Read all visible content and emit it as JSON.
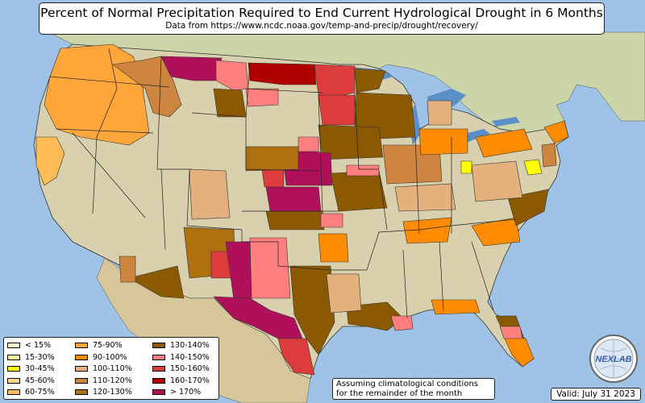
{
  "title": "Percent of Normal Precipitation Required to End Current Hydrological Drought in 6 Months",
  "subtitle": "Data from https://www.ncdc.noaa.gov/temp-and-precip/drought/recovery/",
  "legend": [
    {
      "label": "< 15%",
      "color": "#ffffcc"
    },
    {
      "label": "15-30%",
      "color": "#fff4a0"
    },
    {
      "label": "30-45%",
      "color": "#ffff00"
    },
    {
      "label": "45-60%",
      "color": "#ffd888"
    },
    {
      "label": "60-75%",
      "color": "#ffbb55"
    },
    {
      "label": "75-90%",
      "color": "#ffa63a"
    },
    {
      "label": "90-100%",
      "color": "#ff8c00"
    },
    {
      "label": "100-110%",
      "color": "#e3b07e"
    },
    {
      "label": "110-120%",
      "color": "#cd853f"
    },
    {
      "label": "120-130%",
      "color": "#b07010"
    },
    {
      "label": "130-140%",
      "color": "#8b5a00"
    },
    {
      "label": "140-150%",
      "color": "#ff7f7f"
    },
    {
      "label": "150-160%",
      "color": "#dc3c3c"
    },
    {
      "label": "160-170%",
      "color": "#b00000"
    },
    {
      "label": "> 170%",
      "color": "#b0105a"
    }
  ],
  "note": {
    "line1": "Assuming climatological conditions",
    "line2": "for the remainder of the month"
  },
  "valid": "Valid: July 31 2023",
  "logo_text": "NEXLAB",
  "colors": {
    "ocean": "#9ec3e6",
    "land": "#d6cfa8",
    "canada": "#cfd6b0",
    "mexico": "#d8c8a0",
    "lakes": "#5b8fc8"
  }
}
